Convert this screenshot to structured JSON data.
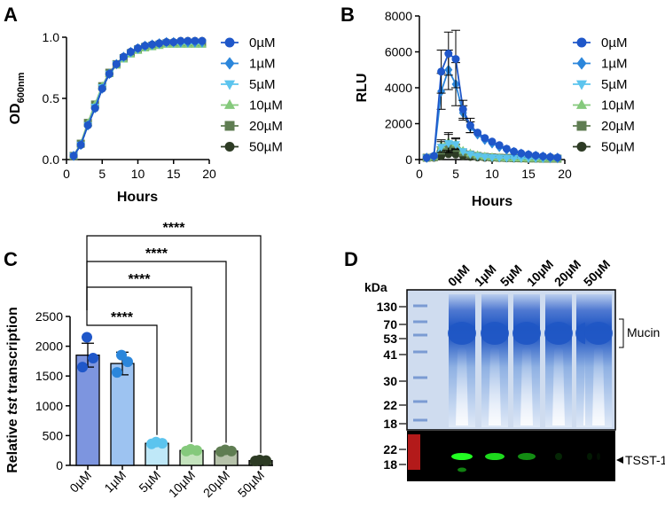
{
  "panels": {
    "A": "A",
    "B": "B",
    "C": "C",
    "D": "D"
  },
  "colors": {
    "0uM": "#1f57c9",
    "1uM": "#2b86db",
    "5uM": "#5cc4ee",
    "10uM": "#85c97c",
    "20uM": "#5f7d52",
    "50uM": "#2d3b24",
    "bar0": "#7d95df",
    "bar1": "#9dc3f1",
    "bar5": "#bfe8f8",
    "bar10": "#c4e3bd",
    "bar20": "#b6c2aa",
    "bar50": "#4c5c42",
    "gel_bg": "#c9d9ee",
    "gel_band": "#1f56c4",
    "blot_bg": "#000000",
    "blot_green": "#22ff22",
    "blot_red": "#e02020"
  },
  "chart_data": [
    {
      "panel": "A",
      "type": "line",
      "title": "",
      "xlabel": "Hours",
      "ylabel_main": "OD",
      "ylabel_sub": "600nm",
      "xlim": [
        0,
        20
      ],
      "ylim": [
        0,
        1.0
      ],
      "xticks": [
        "0",
        "5",
        "10",
        "15",
        "20"
      ],
      "yticks": [
        "0.0",
        "0.5",
        "1.0"
      ],
      "x": [
        1,
        2,
        3,
        4,
        5,
        6,
        7,
        8,
        9,
        10,
        11,
        12,
        13,
        14,
        15,
        16,
        17,
        18,
        19
      ],
      "series": [
        {
          "name": "0µM",
          "marker": "circle",
          "values": [
            0.03,
            0.12,
            0.28,
            0.42,
            0.58,
            0.7,
            0.78,
            0.84,
            0.88,
            0.91,
            0.93,
            0.94,
            0.95,
            0.96,
            0.96,
            0.97,
            0.97,
            0.97,
            0.97
          ]
        },
        {
          "name": "1µM",
          "marker": "diamond",
          "values": [
            0.03,
            0.12,
            0.28,
            0.42,
            0.58,
            0.7,
            0.78,
            0.84,
            0.88,
            0.91,
            0.93,
            0.94,
            0.95,
            0.96,
            0.96,
            0.96,
            0.96,
            0.96,
            0.96
          ]
        },
        {
          "name": "5µM",
          "marker": "triangle-down",
          "values": [
            0.03,
            0.12,
            0.28,
            0.43,
            0.59,
            0.7,
            0.78,
            0.83,
            0.87,
            0.9,
            0.92,
            0.93,
            0.94,
            0.95,
            0.95,
            0.95,
            0.95,
            0.95,
            0.95
          ]
        },
        {
          "name": "10µM",
          "marker": "triangle-up",
          "values": [
            0.03,
            0.13,
            0.3,
            0.45,
            0.6,
            0.7,
            0.77,
            0.82,
            0.86,
            0.89,
            0.91,
            0.92,
            0.93,
            0.94,
            0.94,
            0.94,
            0.94,
            0.94,
            0.94
          ]
        },
        {
          "name": "20µM",
          "marker": "square",
          "values": [
            0.03,
            0.13,
            0.3,
            0.45,
            0.6,
            0.71,
            0.78,
            0.83,
            0.87,
            0.9,
            0.92,
            0.93,
            0.94,
            0.95,
            0.95,
            0.95,
            0.95,
            0.95,
            0.95
          ]
        },
        {
          "name": "50µM",
          "marker": "circle",
          "values": [
            0.03,
            0.12,
            0.28,
            0.42,
            0.58,
            0.7,
            0.78,
            0.84,
            0.88,
            0.91,
            0.93,
            0.94,
            0.95,
            0.96,
            0.96,
            0.97,
            0.97,
            0.97,
            0.97
          ]
        }
      ],
      "legend": "right"
    },
    {
      "panel": "B",
      "type": "line",
      "title": "",
      "xlabel": "Hours",
      "ylabel": "RLU",
      "xlim": [
        0,
        20
      ],
      "ylim": [
        0,
        8000
      ],
      "xticks": [
        "0",
        "5",
        "10",
        "15",
        "20"
      ],
      "yticks": [
        "0",
        "2000",
        "4000",
        "6000",
        "8000"
      ],
      "x": [
        1,
        2,
        3,
        4,
        5,
        6,
        7,
        8,
        9,
        10,
        11,
        12,
        13,
        14,
        15,
        16,
        17,
        18,
        19
      ],
      "series": [
        {
          "name": "0µM",
          "marker": "circle",
          "values": [
            100,
            200,
            4900,
            5900,
            5600,
            2800,
            1900,
            1500,
            1200,
            1000,
            800,
            600,
            450,
            350,
            280,
            230,
            180,
            140,
            110
          ],
          "errors": [
            0,
            0,
            1200,
            1200,
            1600,
            500,
            400,
            0,
            0,
            0,
            0,
            0,
            0,
            0,
            0,
            0,
            0,
            0,
            0
          ]
        },
        {
          "name": "1µM",
          "marker": "diamond",
          "values": [
            100,
            200,
            3800,
            5000,
            4200,
            2600,
            1800,
            1400,
            1100,
            900,
            700,
            550,
            420,
            330,
            260,
            210,
            170,
            130,
            100
          ],
          "errors": [
            0,
            0,
            1000,
            1100,
            1200,
            400,
            300,
            0,
            0,
            0,
            0,
            0,
            0,
            0,
            0,
            0,
            0,
            0,
            0
          ]
        },
        {
          "name": "5µM",
          "marker": "triangle-down",
          "values": [
            100,
            150,
            700,
            900,
            850,
            450,
            300,
            200,
            150,
            120,
            100,
            90,
            80,
            70,
            60,
            60,
            50,
            50,
            50
          ],
          "errors": [
            0,
            0,
            300,
            500,
            300,
            0,
            0,
            0,
            0,
            0,
            0,
            0,
            0,
            0,
            0,
            0,
            0,
            0,
            0
          ]
        },
        {
          "name": "10µM",
          "marker": "triangle-up",
          "values": [
            100,
            150,
            800,
            1000,
            900,
            500,
            350,
            250,
            180,
            140,
            110,
            90,
            80,
            70,
            60,
            60,
            50,
            50,
            50
          ],
          "errors": [
            0,
            0,
            300,
            500,
            300,
            0,
            0,
            0,
            0,
            0,
            0,
            0,
            0,
            0,
            0,
            0,
            0,
            0,
            0
          ]
        },
        {
          "name": "20µM",
          "marker": "square",
          "values": [
            100,
            130,
            500,
            700,
            650,
            400,
            280,
            200,
            150,
            120,
            100,
            90,
            80,
            70,
            60,
            60,
            50,
            50,
            50
          ],
          "errors": [
            0,
            0,
            200,
            300,
            200,
            0,
            0,
            0,
            0,
            0,
            0,
            0,
            0,
            0,
            0,
            0,
            0,
            0,
            0
          ]
        },
        {
          "name": "50µM",
          "marker": "circle",
          "values": [
            80,
            100,
            200,
            300,
            280,
            200,
            150,
            120,
            100,
            90,
            80,
            70,
            60,
            60,
            50,
            50,
            50,
            40,
            40
          ],
          "errors": [
            0,
            0,
            0,
            0,
            0,
            0,
            0,
            0,
            0,
            0,
            0,
            0,
            0,
            0,
            0,
            0,
            0,
            0,
            0
          ]
        }
      ],
      "legend": "right"
    },
    {
      "panel": "C",
      "type": "bar",
      "title": "",
      "ylabel_pre": "Relative ",
      "ylabel_italic": "tst",
      "ylabel_post": " transcription",
      "ylim": [
        0,
        2500
      ],
      "yticks": [
        "0",
        "500",
        "1000",
        "1500",
        "2000",
        "2500"
      ],
      "categories": [
        "0µM",
        "1µM",
        "5µM",
        "10µM",
        "20µM",
        "50µM"
      ],
      "values": [
        1850,
        1710,
        370,
        250,
        240,
        80
      ],
      "errors": [
        200,
        190,
        20,
        20,
        20,
        5
      ],
      "points": [
        [
          2150,
          1800,
          1650
        ],
        [
          1850,
          1740,
          1560
        ],
        [
          390,
          370,
          360
        ],
        [
          270,
          250,
          240
        ],
        [
          260,
          240,
          230
        ],
        [
          90,
          80,
          75
        ]
      ],
      "significance": [
        {
          "from": 0,
          "to": 2,
          "label": "****"
        },
        {
          "from": 0,
          "to": 3,
          "label": "****"
        },
        {
          "from": 0,
          "to": 4,
          "label": "****"
        },
        {
          "from": 0,
          "to": 5,
          "label": "****"
        }
      ]
    }
  ],
  "gel": {
    "unit_label": "kDa",
    "lanes": [
      "0µM",
      "1µM",
      "5µM",
      "10µM",
      "20µM",
      "50µM"
    ],
    "markers_top": [
      "130",
      "70",
      "53",
      "41",
      "30",
      "22",
      "18"
    ],
    "markers_bottom": [
      "22",
      "18"
    ],
    "band_label_top": "Mucin",
    "band_label_bottom": "TSST-1"
  }
}
